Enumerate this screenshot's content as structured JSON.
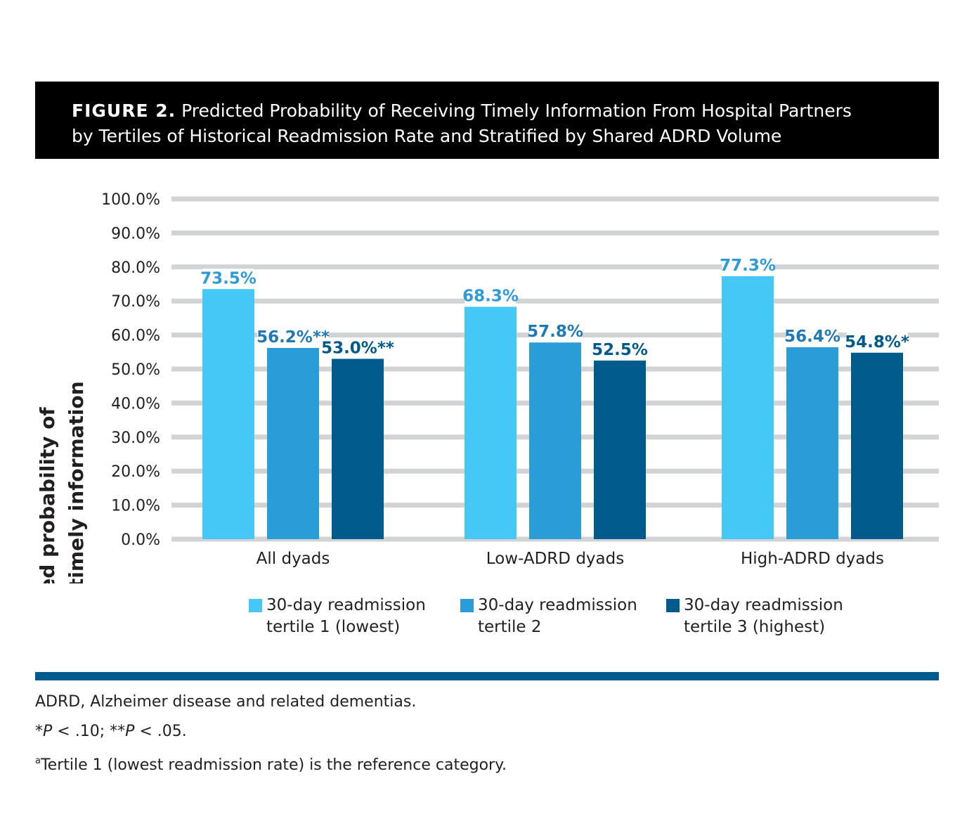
{
  "header": {
    "figure_label": "FIGURE 2.",
    "title_line1": "Predicted Probability of Receiving Timely Information From Hospital Partners",
    "title_line2": "by Tertiles of Historical Readmission Rate and Stratified by Shared ADRD Volume"
  },
  "chart_data": {
    "type": "bar",
    "ylabel_line1": "Predicted probability of",
    "ylabel_line2": "receiving timely information",
    "xlabel": "",
    "ylim": [
      0,
      100
    ],
    "yticks": [
      "0.0%",
      "10.0%",
      "20.0%",
      "30.0%",
      "40.0%",
      "50.0%",
      "60.0%",
      "70.0%",
      "80.0%",
      "90.0%",
      "100.0%"
    ],
    "categories": [
      "All dyads",
      "Low-ADRD dyads",
      "High-ADRD dyads"
    ],
    "series": [
      {
        "name": "30-day readmission tertile 1 (lowest)",
        "color": "#45c8f5",
        "label_color": "#2e9bd6",
        "values": [
          73.5,
          68.3,
          77.3
        ],
        "labels": [
          "73.5%",
          "68.3%",
          "77.3%"
        ]
      },
      {
        "name": "30-day readmission tertile 2",
        "color": "#2a9cd8",
        "label_color": "#1f79b6",
        "values": [
          56.2,
          57.8,
          56.4
        ],
        "labels": [
          "56.2%**",
          "57.8%",
          "56.4%"
        ]
      },
      {
        "name": "30-day readmission tertile 3 (highest)",
        "color": "#005a8b",
        "label_color": "#005a8b",
        "values": [
          53.0,
          52.5,
          54.8
        ],
        "labels": [
          "53.0%**",
          "52.5%",
          "54.8%*"
        ]
      }
    ],
    "legend": "bottom",
    "grid": true
  },
  "legend": {
    "items": [
      {
        "line1": "30-day readmission",
        "line2": "tertile 1 (lowest)",
        "color": "#45c8f5"
      },
      {
        "line1": "30-day readmission",
        "line2": "tertile 2",
        "color": "#2a9cd8"
      },
      {
        "line1": "30-day readmission",
        "line2": "tertile 3 (highest)",
        "color": "#005a8b"
      }
    ]
  },
  "notes": {
    "abbrev": "ADRD, Alzheimer disease and related dementias.",
    "sig_star1": "*",
    "sig_p1": "P",
    "sig_rest1": " < .10; **",
    "sig_p2": "P",
    "sig_rest2": " < .05.",
    "footnote_mark": "a",
    "footnote_text": "Tertile 1 (lowest readmission rate) is the reference category."
  },
  "colors": {
    "divider": "#005a8b",
    "gridline": "#d1d3d4",
    "title_bg": "#000000"
  }
}
